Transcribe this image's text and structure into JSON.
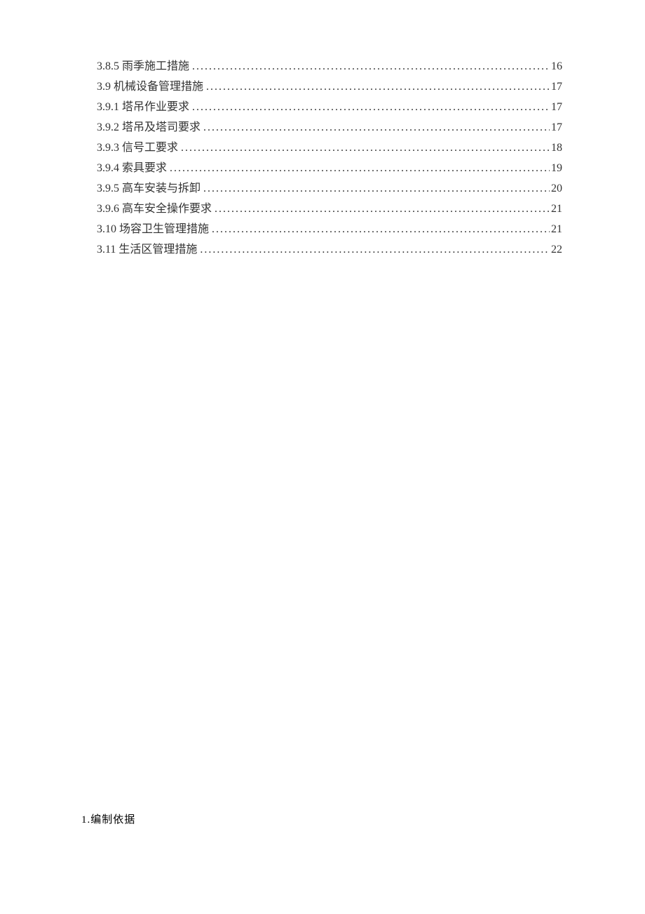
{
  "toc": {
    "entries": [
      {
        "label": "3.8.5 雨季施工措施",
        "page": "16"
      },
      {
        "label": "3.9 机械设备管理措施",
        "page": "17"
      },
      {
        "label": "3.9.1 塔吊作业要求",
        "page": "17"
      },
      {
        "label": "3.9.2 塔吊及塔司要求",
        "page": "17"
      },
      {
        "label": "3.9.3 信号工要求",
        "page": "18"
      },
      {
        "label": "3.9.4 索具要求",
        "page": "19"
      },
      {
        "label": "3.9.5 高车安装与拆卸",
        "page": "20"
      },
      {
        "label": "3.9.6 高车安全操作要求",
        "page": "21"
      },
      {
        "label": "3.10 场容卫生管理措施",
        "page": "21"
      },
      {
        "label": "3.11 生活区管理措施",
        "page": "22"
      }
    ]
  },
  "heading": {
    "text": "1.编制依据"
  },
  "style": {
    "background_color": "#ffffff",
    "text_color": "#333333",
    "heading_color": "#000000",
    "font_family": "SimSun",
    "toc_fontsize": 16,
    "heading_fontsize": 15,
    "line_height": 29
  }
}
